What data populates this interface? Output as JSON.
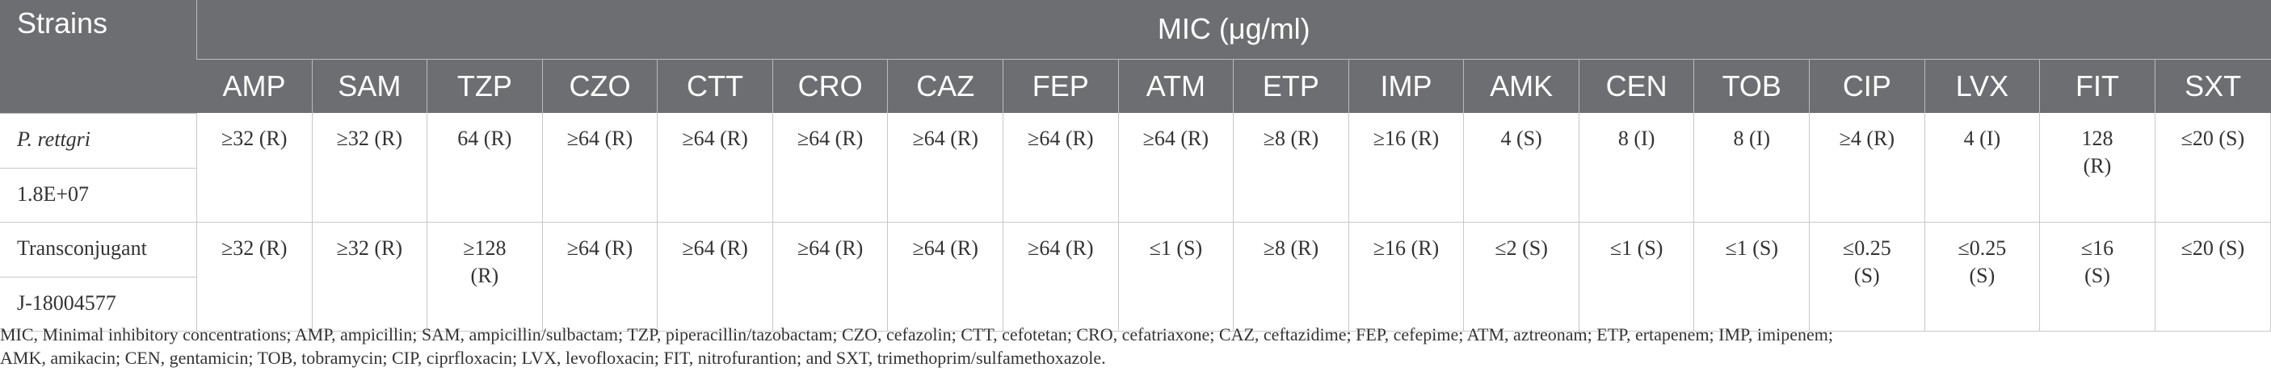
{
  "header": {
    "strains": "Strains",
    "mic": "MIC (μg/ml)",
    "columns": [
      "AMP",
      "SAM",
      "TZP",
      "CZO",
      "CTT",
      "CRO",
      "CAZ",
      "FEP",
      "ATM",
      "ETP",
      "IMP",
      "AMK",
      "CEN",
      "TOB",
      "CIP",
      "LVX",
      "FIT",
      "SXT"
    ]
  },
  "rows": [
    {
      "strain": "P. rettgri",
      "id": "1.8E+07",
      "values": [
        [
          "≥32 (R)"
        ],
        [
          "≥32 (R)"
        ],
        [
          "64 (R)"
        ],
        [
          "≥64 (R)"
        ],
        [
          "≥64 (R)"
        ],
        [
          "≥64 (R)"
        ],
        [
          "≥64 (R)"
        ],
        [
          "≥64 (R)"
        ],
        [
          "≥64 (R)"
        ],
        [
          "≥8 (R)"
        ],
        [
          "≥16 (R)"
        ],
        [
          "4 (S)"
        ],
        [
          "8 (I)"
        ],
        [
          "8 (I)"
        ],
        [
          "≥4 (R)"
        ],
        [
          "4 (I)"
        ],
        [
          "128",
          "(R)"
        ],
        [
          "≤20 (S)"
        ]
      ]
    },
    {
      "strain": "Transconjugant",
      "id": "J-18004577",
      "values": [
        [
          "≥32 (R)"
        ],
        [
          "≥32 (R)"
        ],
        [
          "≥128",
          "(R)"
        ],
        [
          "≥64 (R)"
        ],
        [
          "≥64 (R)"
        ],
        [
          "≥64 (R)"
        ],
        [
          "≥64 (R)"
        ],
        [
          "≥64 (R)"
        ],
        [
          "≤1 (S)"
        ],
        [
          "≥8 (R)"
        ],
        [
          "≥16 (R)"
        ],
        [
          "≤2 (S)"
        ],
        [
          "≤1 (S)"
        ],
        [
          "≤1 (S)"
        ],
        [
          "≤0.25",
          "(S)"
        ],
        [
          "≤0.25",
          "(S)"
        ],
        [
          "≤16",
          "(S)"
        ],
        [
          "≤20 (S)"
        ]
      ]
    }
  ],
  "footnote": {
    "line1": "MIC, Minimal inhibitory concentrations; AMP, ampicillin; SAM, ampicillin/sulbactam; TZP, piperacillin/tazobactam; CZO, cefazolin; CTT, cefotetan; CRO, cefatriaxone; CAZ, ceftazidime; FEP, cefepime; ATM, aztreonam; ETP, ertapenem; IMP, imipenem;",
    "line2": "AMK, amikacin; CEN, gentamicin; TOB, tobramycin; CIP, ciprfloxacin; LVX, levofloxacin; FIT, nitrofurantion; and SXT, trimethoprim/sulfamethoxazole."
  }
}
